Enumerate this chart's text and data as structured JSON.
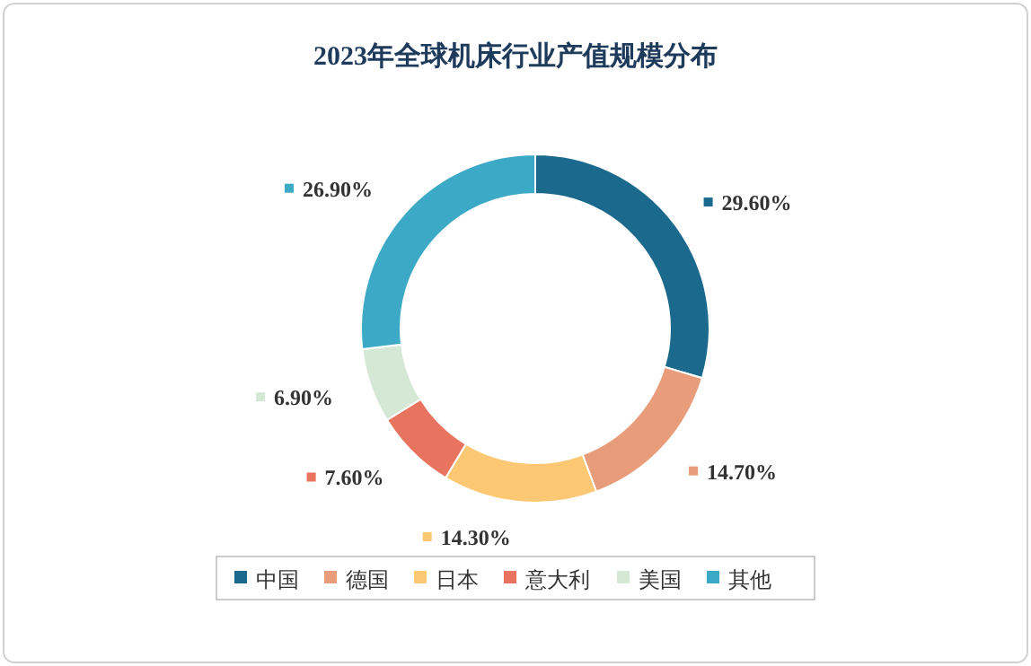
{
  "chart_data": {
    "type": "donut",
    "title": "2023年全球机床行业产值规模分布",
    "categories": [
      "中国",
      "德国",
      "日本",
      "意大利",
      "美国",
      "其他"
    ],
    "values": [
      29.6,
      14.7,
      14.3,
      7.6,
      6.9,
      26.9
    ],
    "value_labels": [
      "29.60%",
      "14.70%",
      "14.30%",
      "7.60%",
      "6.90%",
      "26.90%"
    ],
    "colors": [
      "#1b6a8e",
      "#e89c7a",
      "#fcc873",
      "#e8735e",
      "#d5e8d6",
      "#3ca9c6"
    ],
    "legend": "bottom"
  }
}
